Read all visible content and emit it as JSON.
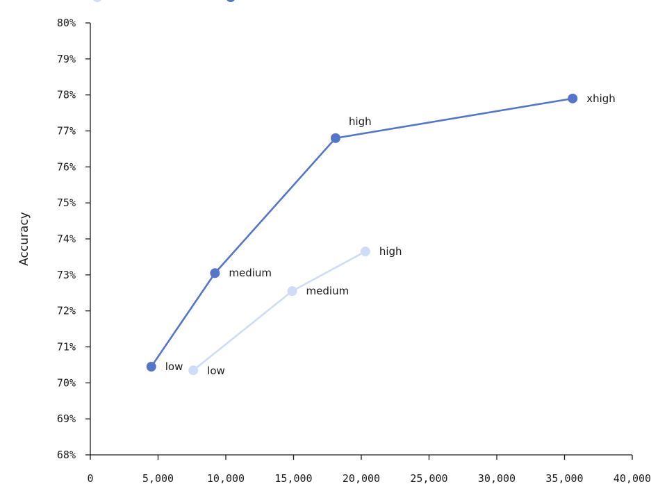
{
  "chart_data": {
    "type": "line",
    "title": "",
    "xlabel": "",
    "ylabel": "Accuracy",
    "xlim": [
      0,
      40000
    ],
    "ylim": [
      68,
      80
    ],
    "x_ticks": [
      {
        "value": 0,
        "label": "0"
      },
      {
        "value": 5000,
        "label": "5,000"
      },
      {
        "value": 10000,
        "label": "10,000"
      },
      {
        "value": 15000,
        "label": "15,000"
      },
      {
        "value": 20000,
        "label": "20,000"
      },
      {
        "value": 25000,
        "label": "25,000"
      },
      {
        "value": 30000,
        "label": "30,000"
      },
      {
        "value": 35000,
        "label": "35,000"
      },
      {
        "value": 40000,
        "label": "40,000"
      }
    ],
    "y_ticks": [
      {
        "value": 68,
        "label": "68%"
      },
      {
        "value": 69,
        "label": "69%"
      },
      {
        "value": 70,
        "label": "70%"
      },
      {
        "value": 71,
        "label": "71%"
      },
      {
        "value": 72,
        "label": "72%"
      },
      {
        "value": 73,
        "label": "73%"
      },
      {
        "value": 74,
        "label": "74%"
      },
      {
        "value": 75,
        "label": "75%"
      },
      {
        "value": 76,
        "label": "76%"
      },
      {
        "value": 77,
        "label": "77%"
      },
      {
        "value": 78,
        "label": "78%"
      },
      {
        "value": 79,
        "label": "79%"
      },
      {
        "value": 80,
        "label": "80%"
      }
    ],
    "grid": false,
    "legend": "top-left",
    "series": [
      {
        "color": "#cfdcf5",
        "points": [
          {
            "x": 7600,
            "y": 70.35,
            "label": "low"
          },
          {
            "x": 14900,
            "y": 72.55,
            "label": "medium"
          },
          {
            "x": 20300,
            "y": 73.65,
            "label": "high"
          }
        ]
      },
      {
        "color": "#5475c8",
        "points": [
          {
            "x": 4500,
            "y": 70.45,
            "label": "low"
          },
          {
            "x": 9200,
            "y": 73.05,
            "label": "medium"
          },
          {
            "x": 18100,
            "y": 76.8,
            "label": "high"
          },
          {
            "x": 35600,
            "y": 77.9,
            "label": "xhigh"
          }
        ]
      }
    ]
  }
}
